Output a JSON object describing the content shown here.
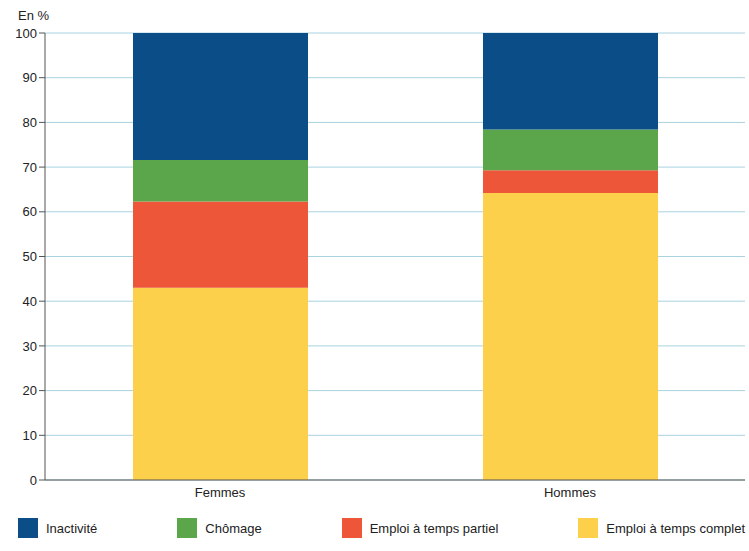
{
  "chart_data": {
    "type": "bar",
    "stacked": true,
    "y_label": "En %",
    "categories": [
      "Femmes",
      "Hommes"
    ],
    "series": [
      {
        "name": "Inactivité",
        "color": "#0b4d87",
        "values": [
          28.4,
          21.6
        ]
      },
      {
        "name": "Chômage",
        "color": "#5ba64a",
        "values": [
          9.3,
          9.1
        ]
      },
      {
        "name": "Emploi à temps partiel",
        "color": "#ee563a",
        "values": [
          19.3,
          5.1
        ]
      },
      {
        "name": "Emploi à temps complet",
        "color": "#fdd04b",
        "values": [
          43.0,
          64.2
        ]
      }
    ],
    "ylim": [
      0,
      100
    ],
    "yticks": [
      0,
      10,
      20,
      30,
      40,
      50,
      60,
      70,
      80,
      90,
      100
    ],
    "grid": true,
    "legend": "bottom"
  }
}
